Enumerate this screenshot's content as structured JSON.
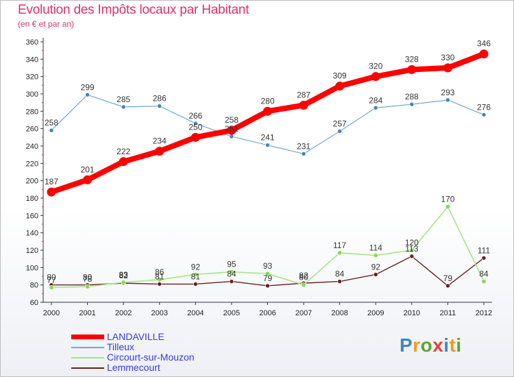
{
  "header": {
    "title": "Evolution des Impôts locaux par Habitant",
    "subtitle": "(en € et par an)"
  },
  "logo": {
    "text": "Proxiti",
    "letter_colors": [
      "#3f86c6",
      "#f39a1b",
      "#5aa62f",
      "#e93f3b",
      "#3f86c6",
      "#f39a1b",
      "#5aa62f"
    ]
  },
  "chart_data": {
    "type": "line",
    "x": [
      "2000",
      "2001",
      "2002",
      "2003",
      "2004",
      "2005",
      "2006",
      "2007",
      "2008",
      "2009",
      "2010",
      "2011",
      "2012"
    ],
    "yticks": [
      60,
      80,
      100,
      120,
      140,
      160,
      180,
      200,
      220,
      240,
      260,
      280,
      300,
      320,
      340,
      360
    ],
    "ylim": [
      60,
      360
    ],
    "grid": false,
    "legend_position": "bottom-left",
    "series": [
      {
        "name": "Lemmecourt",
        "color": "#6b1e1e",
        "values": [
          80,
          80,
          82,
          81,
          81,
          84,
          79,
          82,
          84,
          92,
          113,
          79,
          111
        ]
      },
      {
        "name": "Circourt-sur-Mouzon",
        "color": "#9de07a",
        "values": [
          77,
          78,
          83,
          86,
          92,
          95,
          93,
          80,
          117,
          114,
          120,
          170,
          84
        ]
      },
      {
        "name": "Tilleux",
        "color": "#5b9bd5",
        "values": [
          258,
          299,
          285,
          286,
          266,
          251,
          241,
          231,
          257,
          284,
          288,
          293,
          276
        ]
      },
      {
        "name": "LANDAVILLE",
        "color": "#ff0000",
        "values": [
          187,
          201,
          222,
          234,
          250,
          258,
          280,
          287,
          309,
          320,
          328,
          330,
          346
        ]
      }
    ],
    "legend_order": [
      "LANDAVILLE",
      "Tilleux",
      "Circourt-sur-Mouzon",
      "Lemmecourt"
    ]
  }
}
